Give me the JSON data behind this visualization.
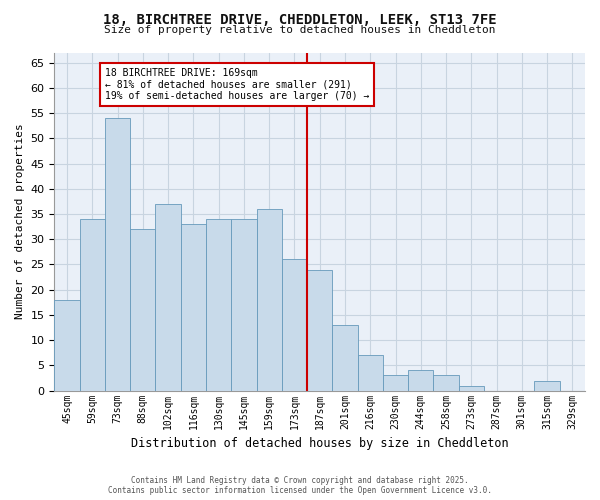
{
  "title_line1": "18, BIRCHTREE DRIVE, CHEDDLETON, LEEK, ST13 7FE",
  "title_line2": "Size of property relative to detached houses in Cheddleton",
  "xlabel": "Distribution of detached houses by size in Cheddleton",
  "ylabel": "Number of detached properties",
  "categories": [
    "45sqm",
    "59sqm",
    "73sqm",
    "88sqm",
    "102sqm",
    "116sqm",
    "130sqm",
    "145sqm",
    "159sqm",
    "173sqm",
    "187sqm",
    "201sqm",
    "216sqm",
    "230sqm",
    "244sqm",
    "258sqm",
    "273sqm",
    "287sqm",
    "301sqm",
    "315sqm",
    "329sqm"
  ],
  "values": [
    18,
    34,
    54,
    32,
    37,
    33,
    34,
    34,
    36,
    26,
    24,
    13,
    7,
    3,
    4,
    3,
    1,
    0,
    0,
    2,
    0
  ],
  "bar_color": "#c8daea",
  "bar_edge_color": "#6699bb",
  "vline_index": 9,
  "vline_color": "#cc0000",
  "annotation_text": "18 BIRCHTREE DRIVE: 169sqm\n← 81% of detached houses are smaller (291)\n19% of semi-detached houses are larger (70) →",
  "annotation_box_facecolor": "#ffffff",
  "annotation_box_edgecolor": "#cc0000",
  "ylim": [
    0,
    67
  ],
  "yticks": [
    0,
    5,
    10,
    15,
    20,
    25,
    30,
    35,
    40,
    45,
    50,
    55,
    60,
    65
  ],
  "grid_color": "#c8d4e0",
  "fig_bg_color": "#ffffff",
  "plot_bg_color": "#eaf0f8",
  "footer_line1": "Contains HM Land Registry data © Crown copyright and database right 2025.",
  "footer_line2": "Contains public sector information licensed under the Open Government Licence v3.0."
}
